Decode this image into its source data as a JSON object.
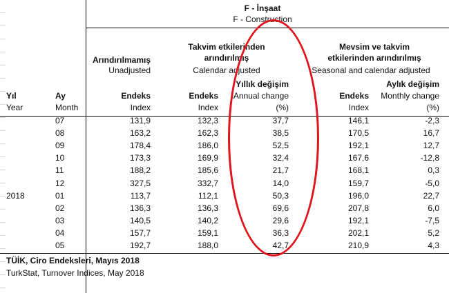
{
  "header": {
    "title_tr": "F - İnşaat",
    "title_en": "F - Construction"
  },
  "columns": {
    "unadjusted_tr": "Arındırılmamış",
    "unadjusted_en": "Unadjusted",
    "calendar_tr_1": "Takvim etkilerinden",
    "calendar_tr_2": "arındırılmış",
    "calendar_en": "Calendar adjusted",
    "seasonal_tr_1": "Mevsim ve takvim",
    "seasonal_tr_2": "etkilerinden arındırılmış",
    "seasonal_en": "Seasonal and calendar adjusted",
    "annual_change_tr": "Yıllık değişim",
    "annual_change_en": "Annual change",
    "monthly_change_tr": "Aylık değişim",
    "monthly_change_en": "Monthly change",
    "percent": "(%)",
    "year_tr": "Yıl",
    "year_en": "Year",
    "month_tr": "Ay",
    "month_en": "Month",
    "index_tr": "Endeks",
    "index_en": "Index"
  },
  "rows": [
    {
      "year": "",
      "month": "07",
      "unadj": "131,9",
      "cal": "132,3",
      "annual": "37,7",
      "sea": "146,1",
      "monthly": "-2,3"
    },
    {
      "year": "",
      "month": "08",
      "unadj": "163,2",
      "cal": "162,3",
      "annual": "38,5",
      "sea": "170,5",
      "monthly": "16,7"
    },
    {
      "year": "",
      "month": "09",
      "unadj": "178,4",
      "cal": "186,0",
      "annual": "52,5",
      "sea": "192,1",
      "monthly": "12,7"
    },
    {
      "year": "",
      "month": "10",
      "unadj": "173,3",
      "cal": "169,9",
      "annual": "32,4",
      "sea": "167,6",
      "monthly": "-12,8"
    },
    {
      "year": "",
      "month": "11",
      "unadj": "188,2",
      "cal": "185,6",
      "annual": "21,7",
      "sea": "168,1",
      "monthly": "0,3"
    },
    {
      "year": "",
      "month": "12",
      "unadj": "327,5",
      "cal": "332,7",
      "annual": "14,0",
      "sea": "159,7",
      "monthly": "-5,0"
    },
    {
      "year": "2018",
      "month": "01",
      "unadj": "113,7",
      "cal": "112,1",
      "annual": "50,3",
      "sea": "196,0",
      "monthly": "22,7"
    },
    {
      "year": "",
      "month": "02",
      "unadj": "136,3",
      "cal": "136,3",
      "annual": "69,6",
      "sea": "207,8",
      "monthly": "6,0"
    },
    {
      "year": "",
      "month": "03",
      "unadj": "140,5",
      "cal": "140,2",
      "annual": "29,6",
      "sea": "192,1",
      "monthly": "-7,5"
    },
    {
      "year": "",
      "month": "04",
      "unadj": "157,7",
      "cal": "159,1",
      "annual": "36,3",
      "sea": "202,1",
      "monthly": "5,2"
    },
    {
      "year": "",
      "month": "05",
      "unadj": "192,7",
      "cal": "188,0",
      "annual": "42,7",
      "sea": "210,9",
      "monthly": "4,3"
    }
  ],
  "footer": {
    "source_tr": "TÜİK, Ciro Endeksleri, Mayıs 2018",
    "source_en": "TurkStat, Turnover Indices, May 2018"
  },
  "annotation": {
    "color": "#e0161f"
  }
}
